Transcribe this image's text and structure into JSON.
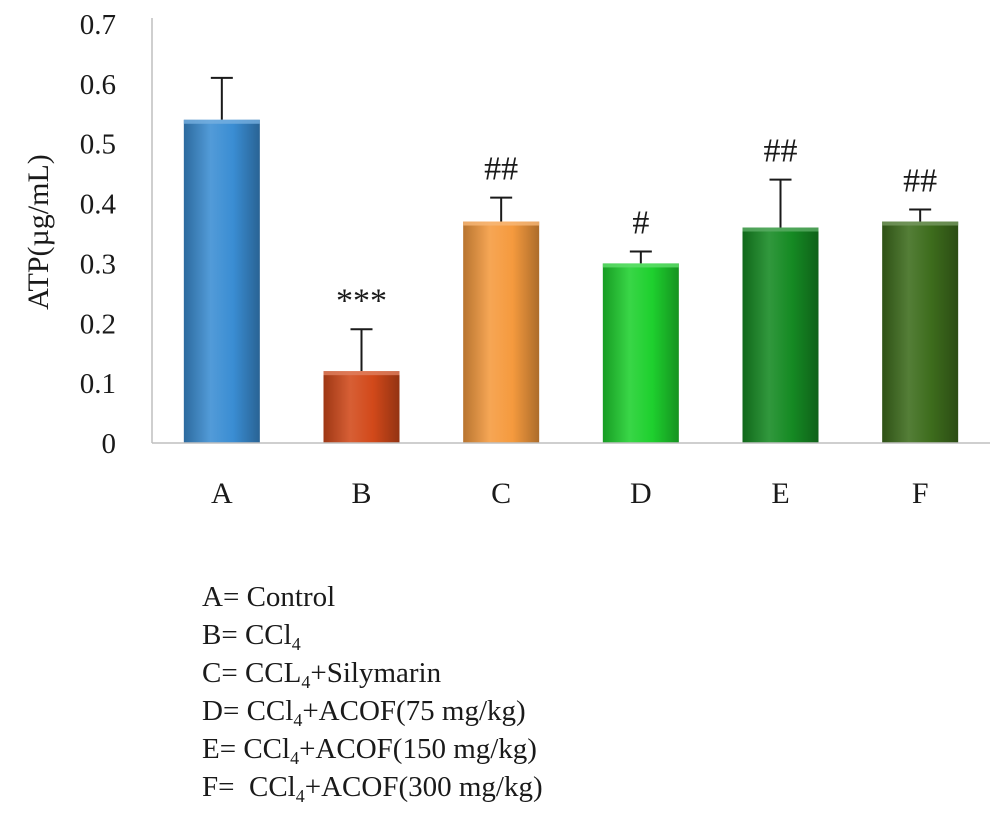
{
  "chart_data": {
    "type": "bar",
    "title": "",
    "xlabel": "",
    "ylabel": "ATP(µg/mL)",
    "ylim": [
      0,
      0.7
    ],
    "yticks": [
      "0",
      "0.1",
      "0.2",
      "0.3",
      "0.4",
      "0.5",
      "0.6",
      "0.7"
    ],
    "grid": false,
    "categories": [
      "A",
      "B",
      "C",
      "D",
      "E",
      "F"
    ],
    "values": [
      0.54,
      0.12,
      0.37,
      0.3,
      0.36,
      0.37
    ],
    "errors": [
      0.07,
      0.07,
      0.04,
      0.02,
      0.08,
      0.02
    ],
    "annotations": [
      "",
      "***",
      "##",
      "#",
      "##",
      "##"
    ],
    "colors": [
      "#3a8dd3",
      "#d2491a",
      "#f59a3e",
      "#1ed02e",
      "#158a23",
      "#3d6c1c"
    ]
  },
  "legend": [
    {
      "key": "A= ",
      "text": "Control"
    },
    {
      "key": "B= ",
      "parts": [
        "CCl",
        "4",
        ""
      ]
    },
    {
      "key": "C= ",
      "parts": [
        "CCL",
        "4",
        "+Silymarin"
      ]
    },
    {
      "key": "D= ",
      "parts": [
        "CCl",
        "4",
        "+ACOF(75 mg/kg)"
      ]
    },
    {
      "key": "E= ",
      "parts": [
        "CCl",
        "4",
        "+ACOF(150 mg/kg)"
      ]
    },
    {
      "key": "F=  ",
      "parts": [
        "CCl",
        "4",
        "+ACOF(300 mg/kg)"
      ]
    }
  ]
}
